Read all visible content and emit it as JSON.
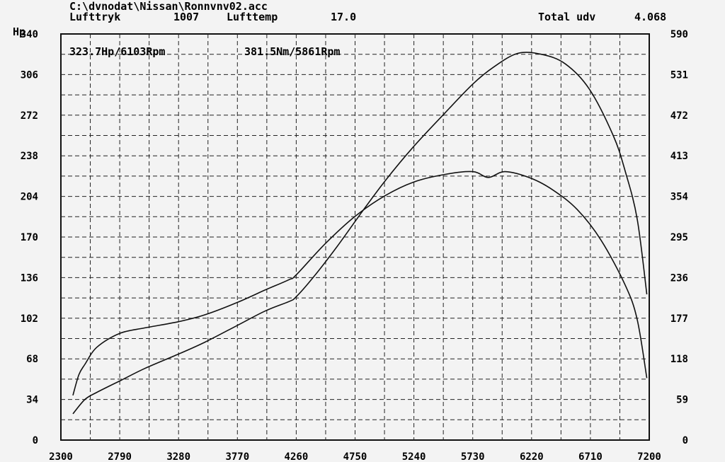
{
  "header": {
    "file_path": "C:\\dvnodat\\Nissan\\Ronnvnv02.acc",
    "pressure_label": "Lufttryk",
    "pressure_value": "1007",
    "temp_label": "Lufttemp",
    "temp_value": "17.0",
    "total_label": "Total udv",
    "total_value": "4.068"
  },
  "chart_data": {
    "type": "line",
    "title": "",
    "xlabel": "",
    "ylabel": "Hp",
    "grid": true,
    "xlim": [
      2300,
      7200
    ],
    "ylim_left": [
      0,
      340
    ],
    "ylim_right": [
      0,
      590
    ],
    "x_ticks": [
      "2300",
      "2790",
      "3280",
      "3770",
      "4260",
      "4750",
      "5240",
      "5730",
      "6220",
      "6710",
      "7200"
    ],
    "y_left_ticks": [
      "0",
      "34",
      "68",
      "102",
      "136",
      "170",
      "204",
      "238",
      "272",
      "306",
      "340"
    ],
    "y_right_ticks": [
      "0",
      "59",
      "118",
      "177",
      "236",
      "295",
      "354",
      "413",
      "472",
      "531",
      "590"
    ],
    "annotations": [
      {
        "text": "323.7Hp/6103Rpm"
      },
      {
        "text": "381.5Nm/5861Rpm"
      }
    ],
    "series": [
      {
        "axis": "left",
        "x": [
          2400,
          2500,
          2600,
          2800,
          3000,
          3280,
          3500,
          3770,
          4000,
          4200,
          4260,
          4400,
          4600,
          4800,
          5000,
          5240,
          5500,
          5730,
          5900,
          6103,
          6300,
          6500,
          6700,
          6900,
          7000,
          7100,
          7180
        ],
        "values": [
          22,
          34,
          40,
          50,
          60,
          72,
          82,
          96,
          108,
          116,
          120,
          136,
          162,
          190,
          217,
          246,
          274,
          298,
          312,
          323.7,
          323,
          315,
          294,
          255,
          225,
          185,
          122
        ]
      },
      {
        "axis": "right",
        "x": [
          2400,
          2450,
          2500,
          2600,
          2790,
          3000,
          3280,
          3500,
          3770,
          4000,
          4200,
          4260,
          4500,
          4750,
          5000,
          5240,
          5500,
          5730,
          5861,
          6000,
          6220,
          6400,
          6600,
          6800,
          7000,
          7100,
          7180
        ],
        "values": [
          65,
          95,
          110,
          135,
          155,
          163,
          172,
          182,
          200,
          218,
          233,
          240,
          285,
          325,
          355,
          375,
          386,
          390,
          381.5,
          390,
          380,
          363,
          335,
          290,
          225,
          175,
          90
        ]
      }
    ]
  }
}
